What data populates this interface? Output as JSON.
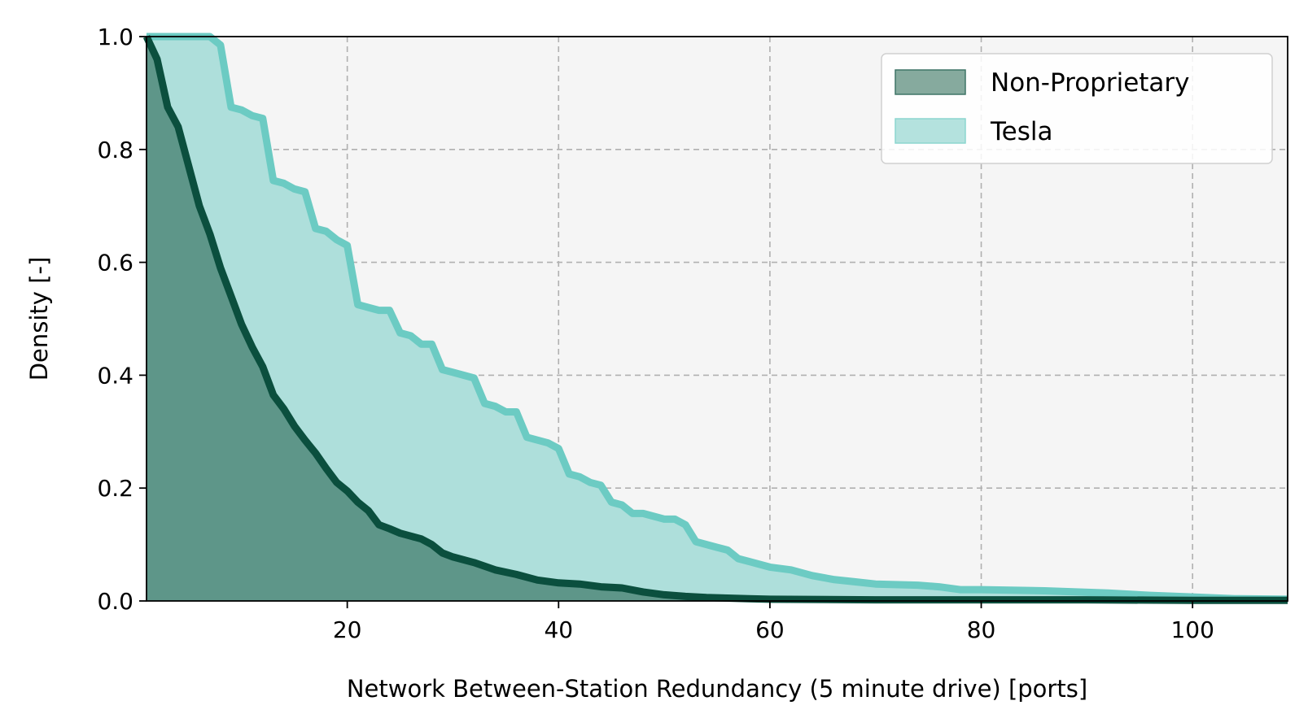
{
  "chart_data": {
    "type": "area",
    "xlabel": "Network Between-Station Redundancy (5 minute drive) [ports]",
    "ylabel": "Density [-]",
    "xlim": [
      1,
      109
    ],
    "ylim": [
      0,
      1.0
    ],
    "xticks": [
      20,
      40,
      60,
      80,
      100
    ],
    "yticks": [
      0.0,
      0.2,
      0.4,
      0.6,
      0.8,
      1.0
    ],
    "grid": true,
    "legend_position": "top-right",
    "series": [
      {
        "name": "Non-Proprietary",
        "fill": "#5e9689",
        "line": "#0b4f3e",
        "x": [
          1,
          2,
          3,
          4,
          5,
          6,
          7,
          8,
          9,
          10,
          11,
          12,
          13,
          14,
          15,
          16,
          17,
          18,
          19,
          20,
          21,
          22,
          23,
          24,
          25,
          26,
          27,
          28,
          29,
          30,
          32,
          34,
          36,
          38,
          40,
          42,
          44,
          46,
          48,
          50,
          52,
          54,
          56,
          58,
          60,
          70,
          80,
          90,
          100,
          109
        ],
        "y": [
          1.0,
          0.96,
          0.875,
          0.84,
          0.77,
          0.7,
          0.65,
          0.59,
          0.54,
          0.49,
          0.45,
          0.415,
          0.365,
          0.34,
          0.31,
          0.285,
          0.262,
          0.235,
          0.21,
          0.195,
          0.175,
          0.16,
          0.135,
          0.128,
          0.12,
          0.115,
          0.11,
          0.1,
          0.085,
          0.078,
          0.068,
          0.055,
          0.047,
          0.037,
          0.032,
          0.03,
          0.025,
          0.023,
          0.016,
          0.011,
          0.008,
          0.006,
          0.005,
          0.004,
          0.003,
          0.002,
          0.002,
          0.002,
          0.001,
          0.001
        ]
      },
      {
        "name": "Tesla",
        "fill": "#aedfdb",
        "line": "#6ccbc3",
        "x": [
          1,
          2,
          3,
          4,
          5,
          6,
          7,
          8,
          9,
          10,
          11,
          12,
          13,
          14,
          15,
          16,
          17,
          18,
          19,
          20,
          21,
          22,
          23,
          24,
          25,
          26,
          27,
          28,
          29,
          30,
          31,
          32,
          33,
          34,
          35,
          36,
          37,
          38,
          39,
          40,
          41,
          42,
          43,
          44,
          45,
          46,
          47,
          48,
          49,
          50,
          51,
          52,
          53,
          54,
          55,
          56,
          57,
          58,
          59,
          60,
          62,
          64,
          66,
          68,
          70,
          74,
          76,
          78,
          80,
          86,
          92,
          96,
          100,
          104,
          109
        ],
        "y": [
          1.0,
          1.0,
          1.0,
          1.0,
          1.0,
          1.0,
          1.0,
          0.985,
          0.875,
          0.87,
          0.86,
          0.855,
          0.745,
          0.74,
          0.73,
          0.725,
          0.66,
          0.655,
          0.64,
          0.63,
          0.525,
          0.52,
          0.515,
          0.515,
          0.475,
          0.47,
          0.455,
          0.455,
          0.41,
          0.405,
          0.4,
          0.395,
          0.35,
          0.345,
          0.335,
          0.335,
          0.29,
          0.285,
          0.28,
          0.27,
          0.225,
          0.22,
          0.21,
          0.205,
          0.175,
          0.17,
          0.155,
          0.155,
          0.15,
          0.145,
          0.145,
          0.135,
          0.105,
          0.1,
          0.095,
          0.09,
          0.075,
          0.07,
          0.065,
          0.06,
          0.055,
          0.045,
          0.038,
          0.034,
          0.03,
          0.028,
          0.025,
          0.02,
          0.02,
          0.018,
          0.014,
          0.01,
          0.007,
          0.004,
          0.003
        ]
      }
    ]
  }
}
